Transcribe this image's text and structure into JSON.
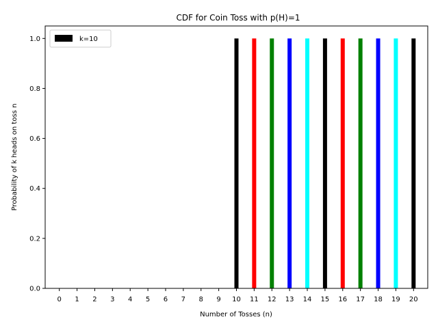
{
  "chart_data": {
    "type": "bar",
    "title": "CDF for Coin Toss with p(H)=1",
    "xlabel": "Number of Tosses (n)",
    "ylabel": "Probability of k heads on toss n",
    "categories": [
      "0",
      "1",
      "2",
      "3",
      "4",
      "5",
      "6",
      "7",
      "8",
      "9",
      "10",
      "11",
      "12",
      "13",
      "14",
      "15",
      "16",
      "17",
      "18",
      "19",
      "20"
    ],
    "series": [
      {
        "name": "k=10",
        "values": [
          0,
          0,
          0,
          0,
          0,
          0,
          0,
          0,
          0,
          0,
          1,
          1,
          1,
          1,
          1,
          1,
          1,
          1,
          1,
          1,
          1
        ],
        "colors": [
          "#000000",
          "#ff0000",
          "#008000",
          "#0000ff",
          "#00ffff",
          "#000000",
          "#ff0000",
          "#008000",
          "#0000ff",
          "#00ffff",
          "#000000",
          "#ff0000",
          "#008000",
          "#0000ff",
          "#00ffff",
          "#000000",
          "#ff0000",
          "#008000",
          "#0000ff",
          "#00ffff",
          "#000000"
        ]
      }
    ],
    "ylim": [
      0,
      1.05
    ],
    "yticks": [
      "0.0",
      "0.2",
      "0.4",
      "0.6",
      "0.8",
      "1.0"
    ],
    "grid": false,
    "legend_position": "top-left",
    "legend_swatch_color": "#000000"
  }
}
